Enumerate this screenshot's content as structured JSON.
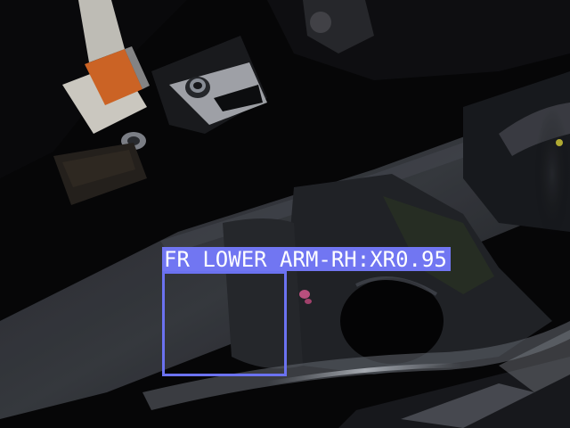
{
  "detections": [
    {
      "label": "FR LOWER ARM-RH:XR0.95",
      "box_color": "#6b72f0",
      "label_bg_color": "#7176f2",
      "label_text_color": "#ffffff"
    }
  ]
}
